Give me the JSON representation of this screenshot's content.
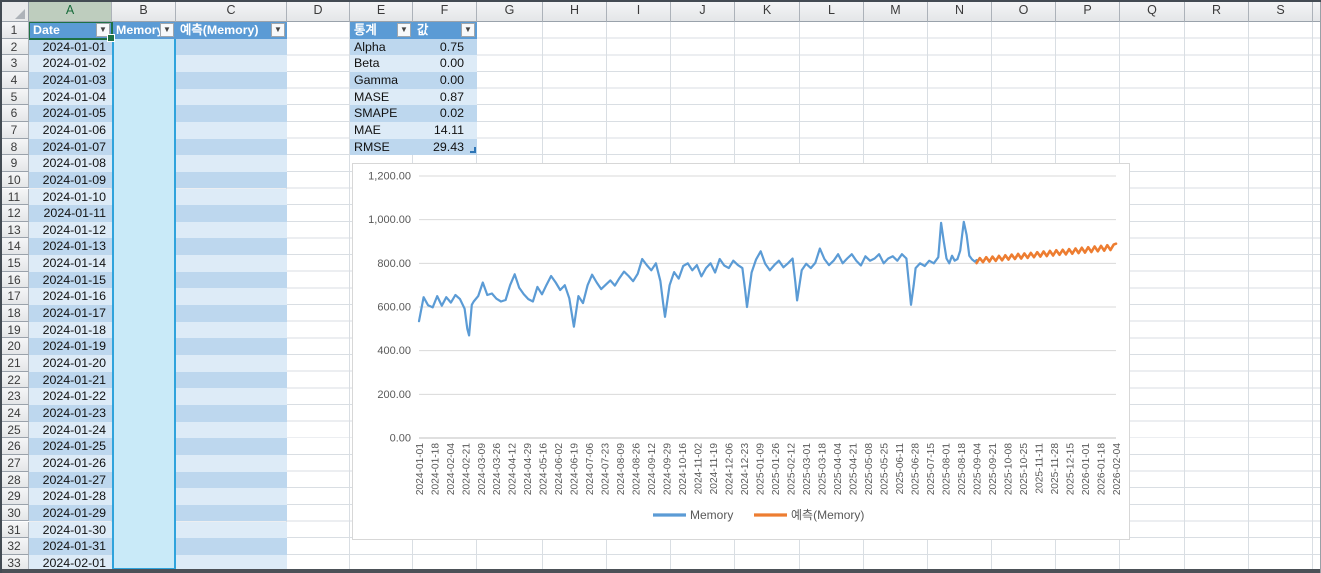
{
  "sheet": {
    "columns": [
      "A",
      "B",
      "C",
      "D",
      "E",
      "F",
      "G",
      "H",
      "I",
      "J",
      "K",
      "L",
      "M",
      "N",
      "O",
      "P",
      "Q",
      "R",
      "S"
    ],
    "row_numbers": [
      1,
      2,
      3,
      4,
      5,
      6,
      7,
      8,
      9,
      10,
      11,
      12,
      13,
      14,
      15,
      16,
      17,
      18,
      19,
      20,
      21,
      22,
      23,
      24,
      25,
      26,
      27,
      28,
      29,
      30,
      31,
      32,
      33
    ],
    "active_column": "A",
    "selected_data_column": "B"
  },
  "main_table": {
    "headers": [
      "Date",
      "Memory",
      "예측(Memory)"
    ],
    "dates": [
      "2024-01-01",
      "2024-01-02",
      "2024-01-03",
      "2024-01-04",
      "2024-01-05",
      "2024-01-06",
      "2024-01-07",
      "2024-01-08",
      "2024-01-09",
      "2024-01-10",
      "2024-01-11",
      "2024-01-12",
      "2024-01-13",
      "2024-01-14",
      "2024-01-15",
      "2024-01-16",
      "2024-01-17",
      "2024-01-18",
      "2024-01-19",
      "2024-01-20",
      "2024-01-21",
      "2024-01-22",
      "2024-01-23",
      "2024-01-24",
      "2024-01-25",
      "2024-01-26",
      "2024-01-27",
      "2024-01-28",
      "2024-01-29",
      "2024-01-30",
      "2024-01-31",
      "2024-02-01"
    ]
  },
  "stats_table": {
    "headers": [
      "통계",
      "값"
    ],
    "rows": [
      [
        "Alpha",
        "0.75"
      ],
      [
        "Beta",
        "0.00"
      ],
      [
        "Gamma",
        "0.00"
      ],
      [
        "MASE",
        "0.87"
      ],
      [
        "SMAPE",
        "0.02"
      ],
      [
        "MAE",
        "14.11"
      ],
      [
        "RMSE",
        "29.43"
      ]
    ]
  },
  "chart_data": {
    "type": "line",
    "ylim": [
      0,
      1200
    ],
    "ytick_labels": [
      "0.00",
      "200.00",
      "400.00",
      "600.00",
      "800.00",
      "1,000.00",
      "1,200.00"
    ],
    "ytick_values": [
      0,
      200,
      400,
      600,
      800,
      1000,
      1200
    ],
    "x_axis_unit": "days since 2024-01-01",
    "x_tick_interval_days": 17,
    "x_tick_labels": [
      "2024-01-01",
      "2024-01-18",
      "2024-02-04",
      "2024-02-21",
      "2024-03-09",
      "2024-03-26",
      "2024-04-12",
      "2024-04-29",
      "2024-05-16",
      "2024-06-02",
      "2024-06-19",
      "2024-07-06",
      "2024-07-23",
      "2024-08-09",
      "2024-08-26",
      "2024-09-12",
      "2024-09-29",
      "2024-10-16",
      "2024-11-02",
      "2024-11-19",
      "2024-12-06",
      "2024-12-23",
      "2025-01-09",
      "2025-01-26",
      "2025-02-12",
      "2025-03-01",
      "2025-03-18",
      "2025-04-04",
      "2025-04-21",
      "2025-05-08",
      "2025-05-25",
      "2025-06-11",
      "2025-06-28",
      "2025-07-15",
      "2025-08-01",
      "2025-08-18",
      "2025-09-04",
      "2025-09-21",
      "2025-10-08",
      "2025-10-25",
      "2025-11-11",
      "2025-11-28",
      "2025-12-15",
      "2026-01-01",
      "2026-01-18",
      "2026-02-04"
    ],
    "grid": true,
    "legend_position": "bottom",
    "series": [
      {
        "name": "Memory",
        "color": "#5B9BD5",
        "points": [
          [
            0,
            535
          ],
          [
            5,
            645
          ],
          [
            10,
            608
          ],
          [
            15,
            598
          ],
          [
            20,
            650
          ],
          [
            25,
            606
          ],
          [
            30,
            645
          ],
          [
            35,
            620
          ],
          [
            40,
            655
          ],
          [
            45,
            636
          ],
          [
            50,
            592
          ],
          [
            53,
            500
          ],
          [
            55,
            470
          ],
          [
            58,
            610
          ],
          [
            60,
            625
          ],
          [
            65,
            650
          ],
          [
            70,
            712
          ],
          [
            75,
            655
          ],
          [
            80,
            662
          ],
          [
            85,
            638
          ],
          [
            90,
            625
          ],
          [
            95,
            632
          ],
          [
            100,
            700
          ],
          [
            105,
            750
          ],
          [
            110,
            688
          ],
          [
            115,
            658
          ],
          [
            120,
            636
          ],
          [
            125,
            625
          ],
          [
            130,
            692
          ],
          [
            135,
            658
          ],
          [
            140,
            702
          ],
          [
            145,
            742
          ],
          [
            150,
            712
          ],
          [
            155,
            678
          ],
          [
            160,
            700
          ],
          [
            165,
            640
          ],
          [
            168,
            560
          ],
          [
            170,
            510
          ],
          [
            175,
            650
          ],
          [
            180,
            618
          ],
          [
            185,
            700
          ],
          [
            190,
            748
          ],
          [
            195,
            712
          ],
          [
            200,
            682
          ],
          [
            205,
            702
          ],
          [
            210,
            722
          ],
          [
            215,
            698
          ],
          [
            220,
            732
          ],
          [
            225,
            762
          ],
          [
            230,
            742
          ],
          [
            235,
            718
          ],
          [
            240,
            752
          ],
          [
            245,
            820
          ],
          [
            250,
            792
          ],
          [
            255,
            768
          ],
          [
            260,
            800
          ],
          [
            265,
            718
          ],
          [
            268,
            615
          ],
          [
            270,
            555
          ],
          [
            275,
            700
          ],
          [
            280,
            760
          ],
          [
            285,
            730
          ],
          [
            290,
            788
          ],
          [
            295,
            800
          ],
          [
            300,
            768
          ],
          [
            305,
            792
          ],
          [
            310,
            740
          ],
          [
            315,
            778
          ],
          [
            320,
            800
          ],
          [
            325,
            758
          ],
          [
            330,
            820
          ],
          [
            335,
            790
          ],
          [
            340,
            778
          ],
          [
            345,
            812
          ],
          [
            350,
            792
          ],
          [
            355,
            778
          ],
          [
            358,
            675
          ],
          [
            360,
            600
          ],
          [
            365,
            758
          ],
          [
            370,
            818
          ],
          [
            375,
            855
          ],
          [
            380,
            798
          ],
          [
            385,
            768
          ],
          [
            390,
            792
          ],
          [
            395,
            812
          ],
          [
            400,
            782
          ],
          [
            405,
            800
          ],
          [
            410,
            822
          ],
          [
            413,
            715
          ],
          [
            415,
            630
          ],
          [
            420,
            768
          ],
          [
            425,
            798
          ],
          [
            430,
            778
          ],
          [
            435,
            802
          ],
          [
            440,
            868
          ],
          [
            445,
            820
          ],
          [
            450,
            792
          ],
          [
            455,
            812
          ],
          [
            460,
            842
          ],
          [
            465,
            800
          ],
          [
            470,
            822
          ],
          [
            475,
            842
          ],
          [
            480,
            812
          ],
          [
            485,
            790
          ],
          [
            490,
            832
          ],
          [
            495,
            812
          ],
          [
            500,
            822
          ],
          [
            505,
            842
          ],
          [
            510,
            800
          ],
          [
            515,
            822
          ],
          [
            520,
            832
          ],
          [
            525,
            812
          ],
          [
            530,
            842
          ],
          [
            535,
            822
          ],
          [
            538,
            695
          ],
          [
            540,
            610
          ],
          [
            543,
            700
          ],
          [
            545,
            778
          ],
          [
            550,
            800
          ],
          [
            555,
            788
          ],
          [
            560,
            812
          ],
          [
            565,
            800
          ],
          [
            570,
            828
          ],
          [
            573,
            985
          ],
          [
            576,
            900
          ],
          [
            579,
            822
          ],
          [
            582,
            800
          ],
          [
            585,
            835
          ],
          [
            588,
            812
          ],
          [
            591,
            820
          ],
          [
            594,
            858
          ],
          [
            598,
            990
          ],
          [
            601,
            930
          ],
          [
            604,
            835
          ],
          [
            607,
            818
          ],
          [
            610,
            808
          ],
          [
            612,
            815
          ]
        ]
      },
      {
        "name": "예측(Memory)",
        "color": "#ED7D31",
        "points": [
          [
            612,
            801
          ],
          [
            615.5,
            824
          ],
          [
            619,
            805
          ],
          [
            622.5,
            828
          ],
          [
            626,
            808
          ],
          [
            629.5,
            831
          ],
          [
            633,
            811
          ],
          [
            636.5,
            834
          ],
          [
            640,
            814
          ],
          [
            643.5,
            837
          ],
          [
            647,
            817
          ],
          [
            650.5,
            840
          ],
          [
            654,
            820
          ],
          [
            657.5,
            843
          ],
          [
            661,
            822
          ],
          [
            664.5,
            845
          ],
          [
            668,
            825
          ],
          [
            671.5,
            848
          ],
          [
            675,
            828
          ],
          [
            678.5,
            851
          ],
          [
            682,
            831
          ],
          [
            685.5,
            854
          ],
          [
            689,
            833
          ],
          [
            692.5,
            857
          ],
          [
            696,
            836
          ],
          [
            699.5,
            860
          ],
          [
            703,
            839
          ],
          [
            706.5,
            862
          ],
          [
            710,
            841
          ],
          [
            713.5,
            865
          ],
          [
            717,
            844
          ],
          [
            720.5,
            868
          ],
          [
            724,
            847
          ],
          [
            727.5,
            871
          ],
          [
            731,
            849
          ],
          [
            734.5,
            874
          ],
          [
            738,
            852
          ],
          [
            741.5,
            877
          ],
          [
            745,
            855
          ],
          [
            748.5,
            880
          ],
          [
            752,
            858
          ],
          [
            755.5,
            883
          ],
          [
            759,
            861
          ],
          [
            762.5,
            886
          ],
          [
            765,
            890
          ]
        ]
      }
    ]
  },
  "colors": {
    "table_header": "#5B9BD5",
    "band_dark": "#BDD7EE",
    "band_light": "#DDEBF7",
    "selection_fill": "#C9EAF8",
    "selection_border": "#2FA3DC",
    "active_cell_border": "#1E7145",
    "series_memory": "#5B9BD5",
    "series_forecast": "#ED7D31",
    "axis_text": "#595959",
    "chart_gridline": "#D9D9D9"
  }
}
